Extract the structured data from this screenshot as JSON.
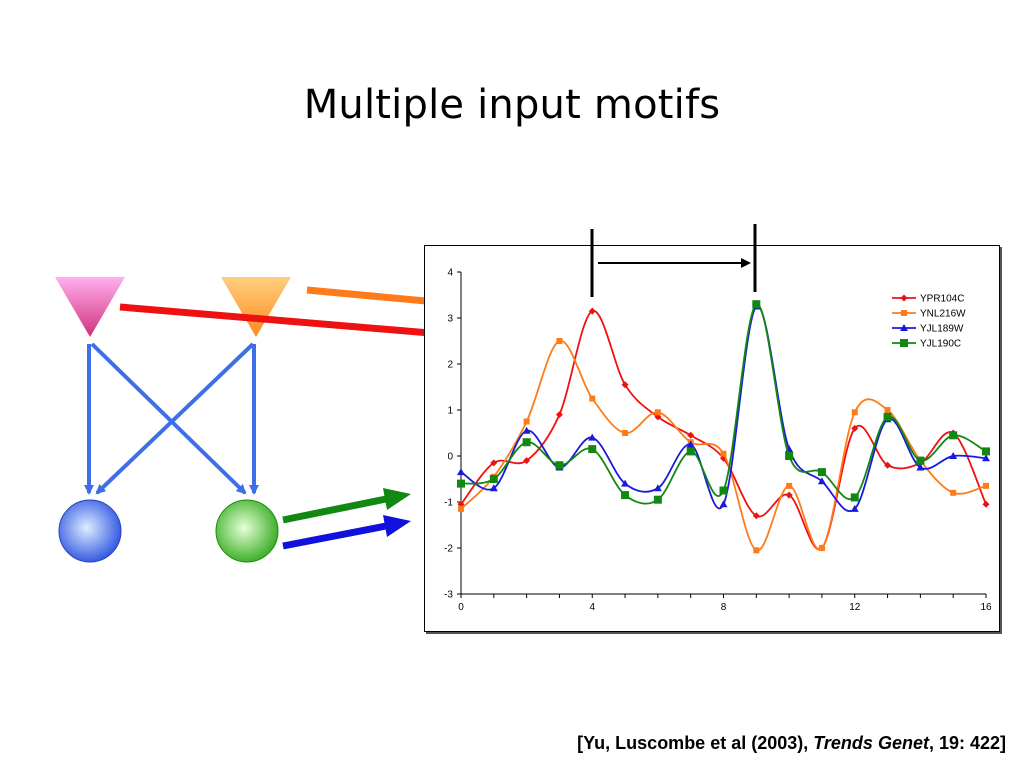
{
  "slide": {
    "title": "Multiple input motifs",
    "citation": {
      "prefix": "[Yu, Luscombe et al (2003), ",
      "journal": "Trends Genet",
      "suffix": ", 19: 422]"
    }
  },
  "colors": {
    "tf1": "#ee7ad6",
    "tf2": "#ffa640",
    "target1": "#6b8cff",
    "target2": "#6ad44a",
    "network_edges": "#3f6fe6",
    "arrow_orange": "#ff7b1a",
    "arrow_red": "#ee1111",
    "arrow_green": "#118811",
    "arrow_blue": "#1111dd"
  },
  "chart_data": {
    "type": "line",
    "title": "",
    "xlabel": "",
    "ylabel": "",
    "xlim": [
      0,
      16
    ],
    "ylim": [
      -3,
      4
    ],
    "xticks": [
      0,
      4,
      8,
      12,
      16
    ],
    "yticks": [
      -3,
      -2,
      -1,
      0,
      1,
      2,
      3,
      4
    ],
    "grid": false,
    "legend_position": "top-right",
    "x": [
      0,
      1,
      2,
      3,
      4,
      5,
      6,
      7,
      8,
      9,
      10,
      11,
      12,
      13,
      14,
      15,
      16
    ],
    "series": [
      {
        "name": "YPR104C",
        "color": "#ee1111",
        "marker": "diamond",
        "values": [
          -1.05,
          -0.15,
          -0.1,
          0.9,
          3.15,
          1.55,
          0.85,
          0.45,
          -0.05,
          -1.3,
          -0.85,
          -2.0,
          0.6,
          -0.2,
          -0.15,
          0.5,
          -1.05
        ]
      },
      {
        "name": "YNL216W",
        "color": "#ff7b1a",
        "marker": "square",
        "values": [
          -1.15,
          -0.45,
          0.75,
          2.5,
          1.25,
          0.5,
          0.95,
          0.3,
          0.05,
          -2.05,
          -0.65,
          -2.0,
          0.95,
          1.0,
          -0.1,
          -0.8,
          -0.65
        ]
      },
      {
        "name": "YJL189W",
        "color": "#1a1add",
        "marker": "triangle",
        "values": [
          -0.35,
          -0.7,
          0.55,
          -0.25,
          0.4,
          -0.6,
          -0.7,
          0.25,
          -1.05,
          3.25,
          0.15,
          -0.55,
          -1.15,
          0.8,
          -0.25,
          0.0,
          -0.05
        ]
      },
      {
        "name": "YJL190C",
        "color": "#118811",
        "marker": "square",
        "values": [
          -0.6,
          -0.5,
          0.3,
          -0.2,
          0.15,
          -0.85,
          -0.95,
          0.1,
          -0.75,
          3.3,
          0.0,
          -0.35,
          -0.9,
          0.85,
          -0.1,
          0.45,
          0.1
        ]
      }
    ]
  }
}
